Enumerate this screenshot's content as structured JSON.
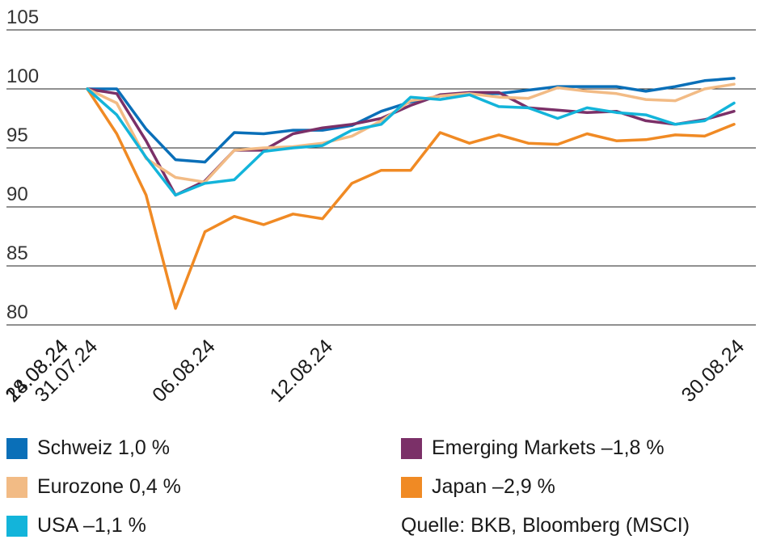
{
  "chart_data": {
    "type": "line",
    "x": [
      "31.07.24",
      "01.08.24",
      "02.08.24",
      "05.08.24",
      "06.08.24",
      "07.08.24",
      "08.08.24",
      "09.08.24",
      "12.08.24",
      "13.08.24",
      "14.08.24",
      "15.08.24",
      "16.08.24",
      "19.08.24",
      "20.08.24",
      "21.08.24",
      "22.08.24",
      "23.08.24",
      "26.08.24",
      "27.08.24",
      "28.08.24",
      "29.08.24",
      "30.08.24"
    ],
    "xticks": [
      "31.07.24",
      "06.08.24",
      "12.08.24",
      "18.08.24",
      "24.08.24",
      "30.08.24"
    ],
    "ylim": [
      80,
      105
    ],
    "yticks": [
      80,
      85,
      90,
      95,
      100,
      105
    ],
    "grid": true,
    "legend_position": "bottom",
    "series": [
      {
        "name": "Schweiz 1,0 %",
        "color": "#0a6fb8",
        "values": [
          100,
          100,
          96.6,
          94.0,
          93.8,
          96.3,
          96.2,
          96.5,
          96.5,
          96.9,
          98.1,
          98.9,
          99.4,
          99.6,
          99.6,
          99.9,
          100.2,
          100.2,
          100.2,
          99.8,
          100.2,
          100.7,
          100.9
        ]
      },
      {
        "name": "Emerging Markets –1,8 %",
        "color": "#7b3068",
        "values": [
          100,
          99.6,
          95.6,
          91.0,
          92.2,
          94.8,
          94.8,
          96.2,
          96.7,
          97.0,
          97.5,
          98.6,
          99.5,
          99.7,
          99.7,
          98.4,
          98.2,
          98.0,
          98.1,
          97.3,
          97.0,
          97.4,
          98.1
        ]
      },
      {
        "name": "Eurozone 0,4 %",
        "color": "#f2bb85",
        "values": [
          100,
          98.8,
          94.1,
          92.5,
          92.1,
          94.8,
          95.0,
          95.1,
          95.4,
          96.0,
          97.3,
          99.0,
          99.4,
          99.6,
          99.3,
          99.2,
          100.1,
          99.8,
          99.6,
          99.1,
          99.0,
          100.0,
          100.4
        ]
      },
      {
        "name": "Japan –2,9 %",
        "color": "#f08a24",
        "values": [
          100,
          96.2,
          91.0,
          81.4,
          87.9,
          89.2,
          88.5,
          89.4,
          89.0,
          92.0,
          93.1,
          93.1,
          96.3,
          95.4,
          96.1,
          95.4,
          95.3,
          96.2,
          95.6,
          95.7,
          96.1,
          96.0,
          97.0
        ]
      },
      {
        "name": "USA –1,1 %",
        "color": "#13b4da",
        "values": [
          100,
          97.8,
          94.2,
          91.0,
          92.0,
          92.3,
          94.7,
          95.0,
          95.2,
          96.5,
          97.0,
          99.3,
          99.1,
          99.5,
          98.5,
          98.4,
          97.5,
          98.4,
          98.0,
          97.8,
          97.0,
          97.3,
          98.8
        ]
      }
    ]
  },
  "legend": {
    "items": [
      {
        "label": "Schweiz 1,0 %",
        "color": "#0a6fb8"
      },
      {
        "label": "Emerging Markets –1,8 %",
        "color": "#7b3068"
      },
      {
        "label": "Eurozone 0,4 %",
        "color": "#f2bb85"
      },
      {
        "label": "Japan –2,9 %",
        "color": "#f08a24"
      },
      {
        "label": "USA –1,1 %",
        "color": "#13b4da"
      }
    ],
    "source": "Quelle: BKB, Bloomberg (MSCI)"
  }
}
